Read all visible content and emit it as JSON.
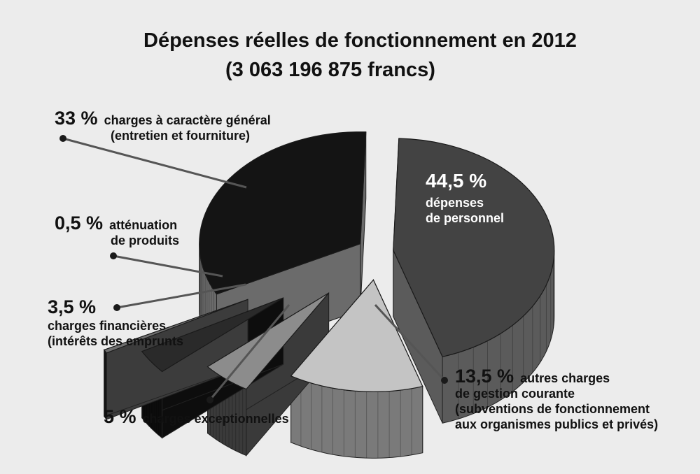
{
  "title": "Dépenses réelles de fonctionnement en 2012",
  "subtitle": "(3 063 196 875 francs)",
  "colors": {
    "background": "#ececec",
    "leader_line": "#555555",
    "dot": "#1a1a1a"
  },
  "chart_data": {
    "type": "pie",
    "style": "3d-exploded",
    "slices": [
      {
        "value": 44.5,
        "pct_label": "44,5 %",
        "lines": [
          "dépenses",
          "de personnel"
        ],
        "top_color": "#434343",
        "side_color": "#5b5b5b"
      },
      {
        "value": 13.5,
        "pct_label": "13,5 %",
        "lines": [
          "autres charges",
          "de gestion courante",
          "(subventions de fonctionnement",
          "aux organismes publics et privés)"
        ],
        "top_color": "#c4c4c4",
        "side_color": "#7a7a7a"
      },
      {
        "value": 5,
        "pct_label": "5 %",
        "lines": [
          "charges exceptionnelles"
        ],
        "top_color": "#8c8c8c",
        "side_color": "#3a3a3a"
      },
      {
        "value": 3.5,
        "pct_label": "3,5 %",
        "lines": [
          "charges financières",
          "(intérêts des emprunts"
        ],
        "top_color": "#2a2a2a",
        "side_color": "#0d0d0d"
      },
      {
        "value": 0.5,
        "pct_label": "0,5 %",
        "lines": [
          "atténuation",
          "de produits"
        ],
        "top_color": "#6e6e6e",
        "side_color": "#3c3c3c"
      },
      {
        "value": 33,
        "pct_label": "33 %",
        "lines": [
          "charges à caractère général",
          "(entretien et fourniture)"
        ],
        "top_color": "#141414",
        "side_color": "#6b6b6b"
      }
    ]
  }
}
